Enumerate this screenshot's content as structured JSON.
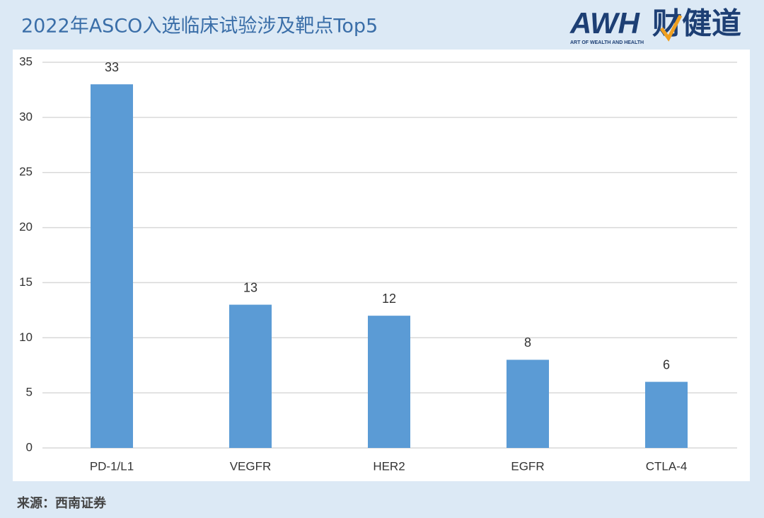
{
  "chart_data": {
    "type": "bar",
    "title": "2022年ASCO入选临床试验涉及靶点Top5",
    "categories": [
      "PD-1/L1",
      "VEGFR",
      "HER2",
      "EGFR",
      "CTLA-4"
    ],
    "values": [
      33,
      13,
      12,
      8,
      6
    ],
    "color": "#5b9bd5",
    "ylim": [
      0,
      35
    ],
    "yticks": [
      0,
      5,
      10,
      15,
      20,
      25,
      30,
      35
    ],
    "grid": true,
    "source": "来源：西南证券"
  },
  "logo": {
    "mark": "AWH",
    "name": "财健道",
    "tagline": "ART OF WEALTH AND HEALTH"
  }
}
